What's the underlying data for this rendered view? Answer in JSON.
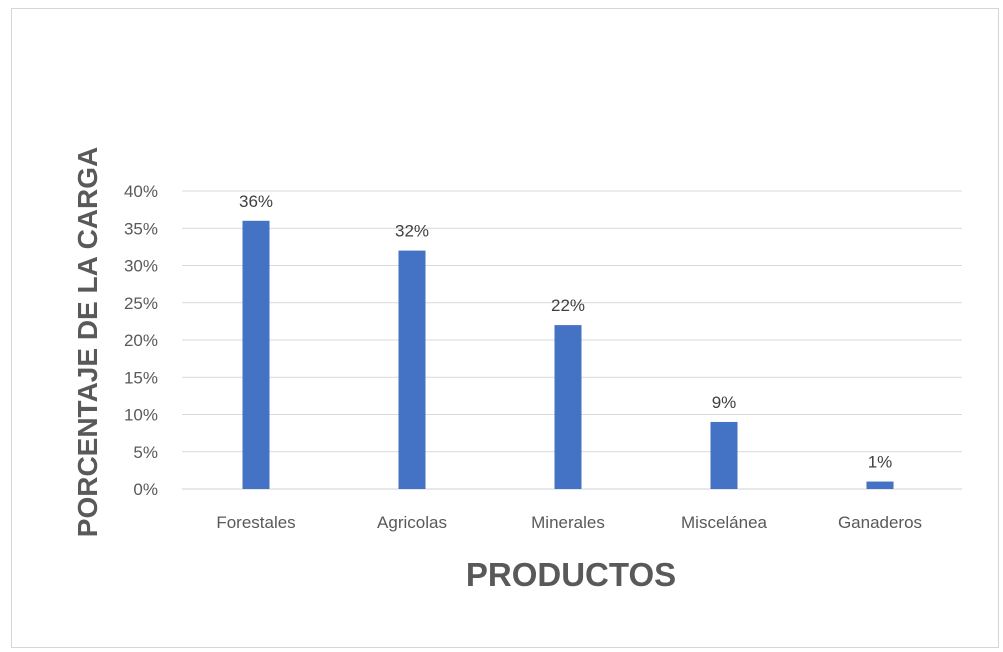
{
  "chart_data": {
    "type": "bar",
    "title": "",
    "xlabel": "PRODUCTOS",
    "ylabel": "PORCENTAJE DE LA CARGA",
    "categories": [
      "Forestales",
      "Agricolas",
      "Minerales",
      "Miscelánea",
      "Ganaderos"
    ],
    "values": [
      36,
      32,
      22,
      9,
      1
    ],
    "data_labels": [
      "36%",
      "32%",
      "22%",
      "9%",
      "1%"
    ],
    "yticks": [
      "0%",
      "5%",
      "10%",
      "15%",
      "20%",
      "25%",
      "30%",
      "35%",
      "40%"
    ],
    "ylim": [
      0,
      40
    ],
    "grid": true,
    "bar_color": "#4472c4",
    "grid_color": "#d9d9d9"
  }
}
